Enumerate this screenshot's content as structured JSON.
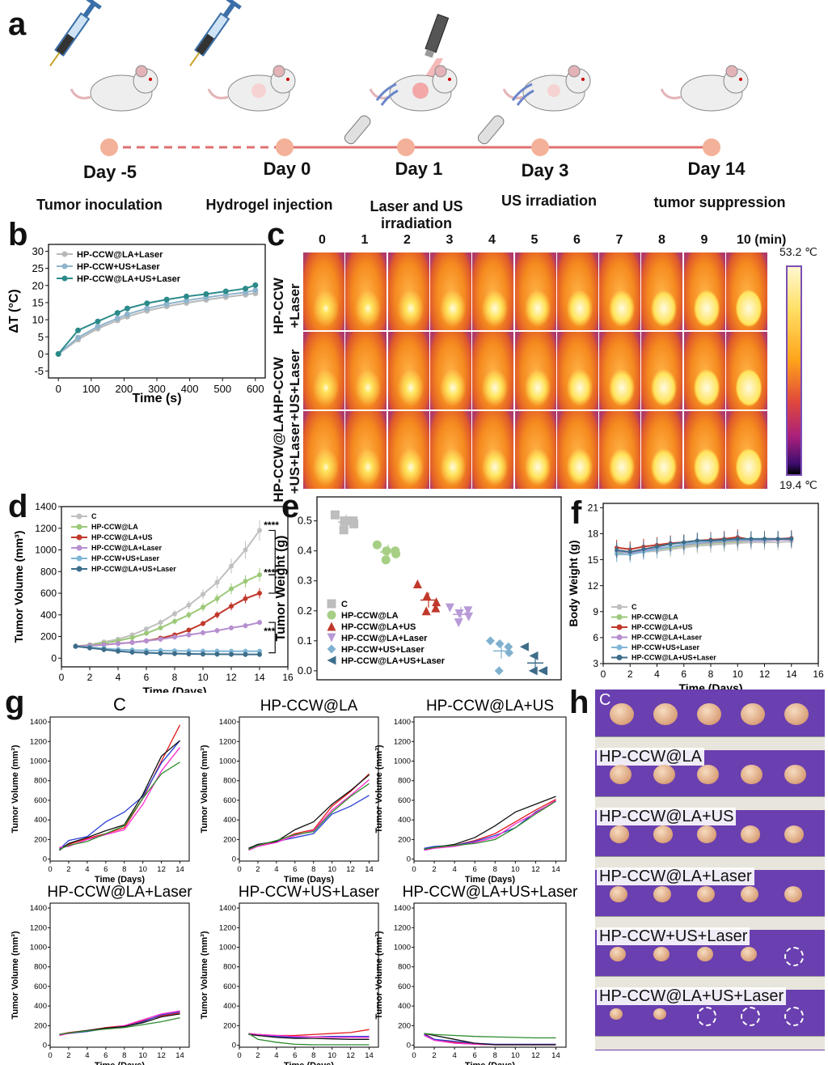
{
  "panels": {
    "a": "a",
    "b": "b",
    "c": "c",
    "d": "d",
    "e": "e",
    "f": "f",
    "g": "g",
    "h": "h"
  },
  "timeline": {
    "days": [
      "Day -5",
      "Day 0",
      "Day 1",
      "Day 3",
      "Day 14"
    ],
    "steps": [
      "Tumor inoculation",
      "Hydrogel injection",
      "Laser and US irradiation",
      "US irradiation",
      "tumor suppression"
    ]
  },
  "thermal": {
    "time_labels": [
      "0",
      "1",
      "2",
      "3",
      "4",
      "5",
      "6",
      "7",
      "8",
      "9",
      "10 (min)"
    ],
    "row_labels": [
      "HP-CCW +Laser",
      "HP-CCW +US+Laser",
      "HP-CCW@LA +US+Laser"
    ],
    "scale_max": "53.2 ℃",
    "scale_min": "19.4 ℃"
  },
  "photos": {
    "rows": [
      "C",
      "HP-CCW@LA",
      "HP-CCW@LA+US",
      "HP-CCW@LA+Laser",
      "HP-CCW+US+Laser",
      "HP-CCW@LA+US+Laser"
    ]
  },
  "chart_data": [
    {
      "id": "b",
      "type": "line",
      "xlabel": "Time (s)",
      "ylabel": "ΔT (°C)",
      "xlim": [
        -30,
        630
      ],
      "ylim": [
        -7,
        32
      ],
      "xticks": [
        0,
        100,
        200,
        300,
        400,
        500,
        600
      ],
      "yticks": [
        -5,
        0,
        5,
        10,
        15,
        20,
        25,
        30
      ],
      "x": [
        0,
        60,
        120,
        180,
        210,
        270,
        330,
        390,
        450,
        510,
        570,
        600
      ],
      "legend": "top-left",
      "series": [
        {
          "name": "HP-CCW@LA+Laser",
          "color": "#b8b8b8",
          "values": [
            0,
            4.2,
            7.4,
            9.8,
            10.9,
            12.6,
            13.9,
            14.9,
            15.8,
            16.6,
            17.3,
            17.7
          ]
        },
        {
          "name": "HP-CCW+US+Laser",
          "color": "#8fb4cc",
          "values": [
            0,
            4.8,
            8.0,
            10.4,
            11.6,
            13.3,
            14.6,
            15.6,
            16.5,
            17.3,
            18.0,
            18.6
          ]
        },
        {
          "name": "HP-CCW@LA+US+Laser",
          "color": "#2c8a8a",
          "values": [
            0,
            6.9,
            9.5,
            12.0,
            13.3,
            14.8,
            15.9,
            16.8,
            17.5,
            18.3,
            19.1,
            20.1
          ]
        }
      ]
    },
    {
      "id": "d",
      "type": "line",
      "xlabel": "Time (Days)",
      "ylabel": "Tumor Volume (mm³)",
      "xlim": [
        0,
        16
      ],
      "ylim": [
        -80,
        1400
      ],
      "xticks": [
        0,
        2,
        4,
        6,
        8,
        10,
        12,
        14,
        16
      ],
      "yticks": [
        0,
        200,
        400,
        600,
        800,
        1000,
        1200,
        1400
      ],
      "x": [
        1,
        2,
        3,
        4,
        5,
        6,
        7,
        8,
        9,
        10,
        11,
        12,
        13,
        14
      ],
      "legend": "top-left",
      "significance": [
        "****",
        "****",
        "***"
      ],
      "series": [
        {
          "name": "C",
          "color": "#c0c0c0",
          "values": [
            110,
            125,
            150,
            175,
            215,
            270,
            330,
            410,
            490,
            590,
            700,
            850,
            1000,
            1180
          ]
        },
        {
          "name": "HP-CCW@LA",
          "color": "#9cc97a",
          "values": [
            110,
            120,
            140,
            160,
            190,
            230,
            280,
            340,
            400,
            470,
            550,
            640,
            710,
            770
          ]
        },
        {
          "name": "HP-CCW@LA+US",
          "color": "#c0392b",
          "values": [
            110,
            115,
            125,
            135,
            145,
            160,
            185,
            215,
            260,
            320,
            400,
            480,
            550,
            600
          ]
        },
        {
          "name": "HP-CCW@LA+Laser",
          "color": "#b58fcf",
          "values": [
            110,
            115,
            125,
            135,
            145,
            160,
            175,
            195,
            215,
            235,
            255,
            280,
            300,
            330
          ]
        },
        {
          "name": "HP-CCW+US+Laser",
          "color": "#7fb6d6",
          "values": [
            110,
            100,
            90,
            80,
            75,
            70,
            70,
            68,
            66,
            65,
            65,
            64,
            64,
            64
          ]
        },
        {
          "name": "HP-CCW@LA+US+Laser",
          "color": "#3d6d8a",
          "values": [
            110,
            95,
            80,
            65,
            55,
            50,
            45,
            42,
            40,
            38,
            37,
            36,
            35,
            35
          ]
        }
      ]
    },
    {
      "id": "e",
      "type": "scatter",
      "ylabel": "Tumor Weight (g)",
      "ylim": [
        -0.03,
        0.58
      ],
      "yticks": [
        0.0,
        0.1,
        0.2,
        0.3,
        0.4,
        0.5
      ],
      "legend": "bottom-left",
      "series": [
        {
          "name": "C",
          "color": "#bdbdbd",
          "marker": "square",
          "values": [
            0.52,
            0.5,
            0.49,
            0.47,
            0.5
          ]
        },
        {
          "name": "HP-CCW@LA",
          "color": "#a6cf85",
          "marker": "circle",
          "values": [
            0.42,
            0.4,
            0.39,
            0.37,
            0.4
          ]
        },
        {
          "name": "HP-CCW@LA+US",
          "color": "#c0392b",
          "marker": "triangle-up",
          "values": [
            0.29,
            0.25,
            0.23,
            0.2,
            0.21
          ]
        },
        {
          "name": "HP-CCW@LA+Laser",
          "color": "#b79ad6",
          "marker": "triangle-down",
          "values": [
            0.21,
            0.19,
            0.18,
            0.16,
            0.2
          ]
        },
        {
          "name": "HP-CCW+US+Laser",
          "color": "#7fb1cf",
          "marker": "diamond",
          "values": [
            0.1,
            0.09,
            0.06,
            0.0,
            0.08
          ]
        },
        {
          "name": "HP-CCW@LA+US+Laser",
          "color": "#3d6d8a",
          "marker": "triangle-left",
          "values": [
            0.08,
            0.05,
            0.0,
            0.0,
            0.0
          ]
        }
      ]
    },
    {
      "id": "f",
      "type": "line",
      "xlabel": "Time (Days)",
      "ylabel": "Body Weight (g)",
      "xlim": [
        0,
        16
      ],
      "ylim": [
        3,
        21.5
      ],
      "xticks": [
        0,
        2,
        4,
        6,
        8,
        10,
        12,
        14,
        16
      ],
      "yticks": [
        3,
        6,
        9,
        12,
        15,
        18,
        21
      ],
      "x": [
        1,
        2,
        3,
        4,
        5,
        6,
        7,
        8,
        9,
        10,
        11,
        12,
        13,
        14
      ],
      "legend": "bottom-left",
      "series": [
        {
          "name": "C",
          "color": "#c0c0c0",
          "values": [
            15.6,
            15.6,
            15.9,
            16.0,
            16.2,
            16.4,
            16.6,
            16.7,
            16.8,
            16.9,
            17.0,
            17.0,
            17.0,
            17.1
          ]
        },
        {
          "name": "HP-CCW@LA",
          "color": "#9cc97a",
          "values": [
            15.8,
            15.9,
            16.0,
            16.2,
            16.4,
            16.6,
            16.8,
            16.9,
            17.0,
            17.1,
            17.2,
            17.2,
            17.3,
            17.3
          ]
        },
        {
          "name": "HP-CCW@LA+US",
          "color": "#c0392b",
          "values": [
            16.4,
            16.2,
            16.5,
            16.7,
            16.9,
            17.0,
            17.2,
            17.3,
            17.4,
            17.6,
            17.3,
            17.4,
            17.4,
            17.5
          ]
        },
        {
          "name": "HP-CCW@LA+Laser",
          "color": "#b58fcf",
          "values": [
            16.0,
            15.8,
            16.0,
            16.3,
            16.5,
            16.7,
            16.9,
            17.0,
            17.1,
            17.2,
            17.2,
            17.2,
            17.3,
            17.3
          ]
        },
        {
          "name": "HP-CCW+US+Laser",
          "color": "#7fb6d6",
          "values": [
            15.7,
            15.6,
            15.9,
            16.2,
            16.5,
            16.8,
            17.0,
            17.1,
            17.2,
            17.3,
            17.3,
            17.3,
            17.4,
            17.4
          ]
        },
        {
          "name": "HP-CCW@LA+US+Laser",
          "color": "#3d6d8a",
          "values": [
            16.1,
            15.9,
            16.2,
            16.5,
            16.8,
            17.0,
            17.2,
            17.2,
            17.3,
            17.4,
            17.4,
            17.4,
            17.4,
            17.4
          ]
        }
      ]
    },
    {
      "id": "g",
      "type": "line",
      "xlabel": "Time (Days)",
      "ylabel": "Tumor Volume (mm³)",
      "xlim": [
        0,
        15
      ],
      "ylim": [
        -20,
        1450
      ],
      "xticks": [
        0,
        2,
        4,
        6,
        8,
        10,
        12,
        14
      ],
      "yticks": [
        0,
        200,
        400,
        600,
        800,
        1000,
        1200,
        1400
      ],
      "x": [
        1,
        2,
        4,
        6,
        8,
        10,
        12,
        14
      ],
      "panels": [
        {
          "title": "C",
          "lines": [
            {
              "color": "#e41a1c",
              "values": [
                110,
                150,
                210,
                260,
                320,
                620,
                1000,
                1370
              ]
            },
            {
              "color": "#2b3fd6",
              "values": [
                100,
                190,
                230,
                380,
                480,
                640,
                980,
                1210
              ]
            },
            {
              "color": "#ff2bd2",
              "values": [
                120,
                130,
                200,
                250,
                300,
                560,
                900,
                1140
              ]
            },
            {
              "color": "#111111",
              "values": [
                90,
                160,
                220,
                290,
                350,
                660,
                1050,
                1210
              ]
            },
            {
              "color": "#2e8b2e",
              "values": [
                100,
                140,
                180,
                260,
                340,
                620,
                870,
                990
              ]
            }
          ]
        },
        {
          "title": "HP-CCW@LA",
          "lines": [
            {
              "color": "#e41a1c",
              "values": [
                100,
                140,
                180,
                260,
                300,
                540,
                690,
                870
              ]
            },
            {
              "color": "#2b3fd6",
              "values": [
                110,
                150,
                180,
                220,
                260,
                460,
                540,
                650
              ]
            },
            {
              "color": "#ff2bd2",
              "values": [
                90,
                130,
                170,
                240,
                290,
                500,
                650,
                810
              ]
            },
            {
              "color": "#111111",
              "values": [
                110,
                150,
                180,
                300,
                380,
                560,
                700,
                860
              ]
            },
            {
              "color": "#2e8b2e",
              "values": [
                100,
                140,
                190,
                250,
                280,
                480,
                640,
                770
              ]
            }
          ]
        },
        {
          "title": "HP-CCW@LA+US",
          "lines": [
            {
              "color": "#e41a1c",
              "values": [
                100,
                120,
                140,
                190,
                260,
                380,
                500,
                610
              ]
            },
            {
              "color": "#2b3fd6",
              "values": [
                110,
                130,
                140,
                180,
                240,
                320,
                480,
                590
              ]
            },
            {
              "color": "#ff2bd2",
              "values": [
                90,
                110,
                130,
                170,
                220,
                360,
                470,
                600
              ]
            },
            {
              "color": "#111111",
              "values": [
                100,
                120,
                150,
                220,
                340,
                480,
                560,
                640
              ]
            },
            {
              "color": "#2e8b2e",
              "values": [
                100,
                120,
                140,
                160,
                200,
                320,
                460,
                590
              ]
            }
          ]
        },
        {
          "title": "HP-CCW@LA+Laser",
          "lines": [
            {
              "color": "#e41a1c",
              "values": [
                110,
                130,
                150,
                180,
                200,
                250,
                300,
                330
              ]
            },
            {
              "color": "#2b3fd6",
              "values": [
                110,
                120,
                140,
                170,
                190,
                240,
                310,
                340
              ]
            },
            {
              "color": "#ff2bd2",
              "values": [
                100,
                120,
                150,
                170,
                200,
                260,
                320,
                350
              ]
            },
            {
              "color": "#111111",
              "values": [
                110,
                125,
                150,
                175,
                190,
                230,
                290,
                320
              ]
            },
            {
              "color": "#2e8b2e",
              "values": [
                110,
                125,
                145,
                165,
                180,
                210,
                240,
                280
              ]
            }
          ]
        },
        {
          "title": "HP-CCW+US+Laser",
          "lines": [
            {
              "color": "#e41a1c",
              "values": [
                120,
                110,
                100,
                100,
                110,
                120,
                130,
                160
              ]
            },
            {
              "color": "#2b3fd6",
              "values": [
                110,
                100,
                90,
                80,
                85,
                90,
                90,
                90
              ]
            },
            {
              "color": "#ff2bd2",
              "values": [
                120,
                110,
                100,
                90,
                85,
                80,
                80,
                80
              ]
            },
            {
              "color": "#111111",
              "values": [
                110,
                100,
                80,
                70,
                70,
                65,
                60,
                60
              ]
            },
            {
              "color": "#2e8b2e",
              "values": [
                120,
                60,
                30,
                10,
                5,
                5,
                5,
                5
              ]
            }
          ]
        },
        {
          "title": "HP-CCW@LA+US+Laser",
          "lines": [
            {
              "color": "#e41a1c",
              "values": [
                120,
                60,
                30,
                10,
                5,
                5,
                5,
                5
              ]
            },
            {
              "color": "#2b3fd6",
              "values": [
                110,
                60,
                40,
                20,
                10,
                10,
                10,
                10
              ]
            },
            {
              "color": "#ff2bd2",
              "values": [
                100,
                50,
                20,
                10,
                5,
                5,
                5,
                5
              ]
            },
            {
              "color": "#111111",
              "values": [
                120,
                100,
                60,
                20,
                5,
                5,
                5,
                5
              ]
            },
            {
              "color": "#2e8b2e",
              "values": [
                120,
                110,
                100,
                90,
                85,
                80,
                75,
                75
              ]
            }
          ]
        }
      ]
    }
  ]
}
